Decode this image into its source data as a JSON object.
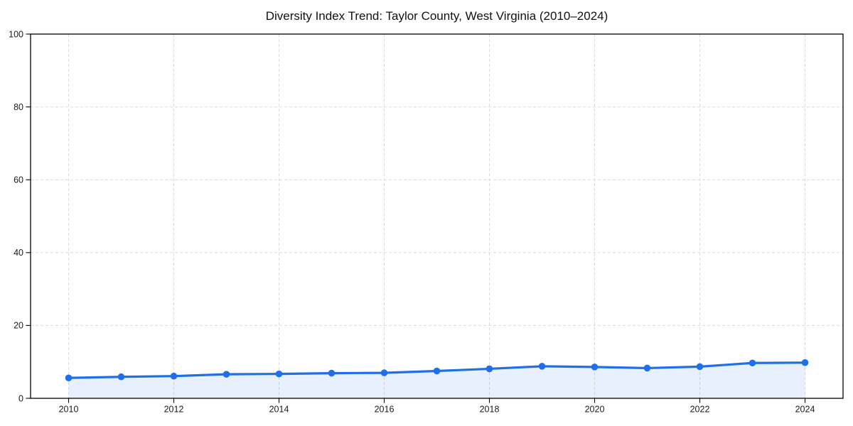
{
  "chart_data": {
    "type": "area",
    "title": "Diversity Index Trend: Taylor County, West Virginia (2010–2024)",
    "xlabel": "",
    "ylabel": "",
    "x": [
      2010,
      2011,
      2012,
      2013,
      2014,
      2015,
      2016,
      2017,
      2018,
      2019,
      2020,
      2021,
      2022,
      2023,
      2024
    ],
    "series": [
      {
        "name": "Diversity Index",
        "values": [
          5.6,
          5.9,
          6.1,
          6.6,
          6.7,
          6.9,
          7.0,
          7.5,
          8.1,
          8.8,
          8.6,
          8.3,
          8.7,
          9.7,
          9.8
        ]
      }
    ],
    "ylim": [
      0,
      100
    ],
    "xticks": [
      2010,
      2012,
      2014,
      2016,
      2018,
      2020,
      2022,
      2024
    ],
    "yticks": [
      0,
      20,
      40,
      60,
      80,
      100
    ],
    "grid": true,
    "grid_style": "dashed",
    "legend": false,
    "marker": "circle",
    "colors": {
      "line": "#1f6fe8",
      "marker": "#1f6fe8",
      "fill": "rgba(31, 111, 232, 0.10)",
      "grid": "#dcdcdc",
      "spine": "#000000",
      "tick_label": "#1a1a1a",
      "title": "#111111",
      "background": "#ffffff"
    }
  }
}
